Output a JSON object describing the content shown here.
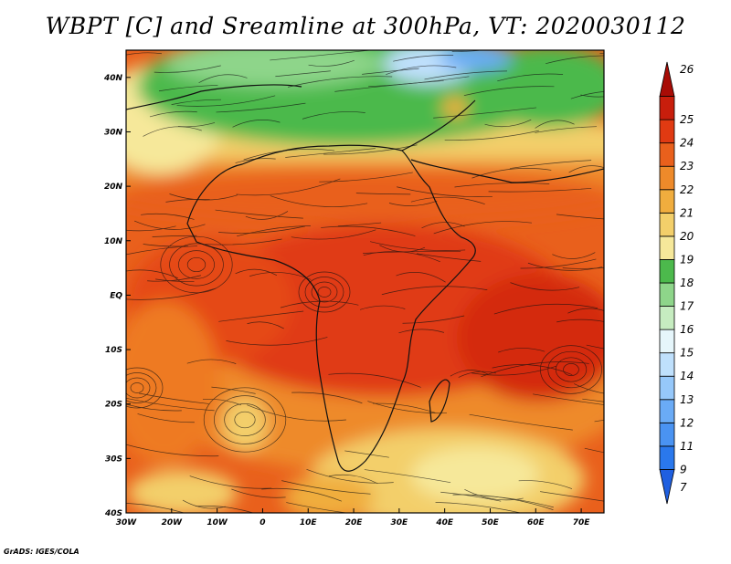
{
  "title": "WBPT [C] and Sreamline at 300hPa, VT: 2020030112",
  "credit": "GrADS: IGES/COLA",
  "map": {
    "lon_range": [
      -30,
      75
    ],
    "lat_range": [
      -40,
      45
    ],
    "lon_ticks": [
      {
        "value": -30,
        "label": "30W"
      },
      {
        "value": -20,
        "label": "20W"
      },
      {
        "value": -10,
        "label": "10W"
      },
      {
        "value": 0,
        "label": "0"
      },
      {
        "value": 10,
        "label": "10E"
      },
      {
        "value": 20,
        "label": "20E"
      },
      {
        "value": 30,
        "label": "30E"
      },
      {
        "value": 40,
        "label": "40E"
      },
      {
        "value": 50,
        "label": "50E"
      },
      {
        "value": 60,
        "label": "60E"
      },
      {
        "value": 70,
        "label": "70E"
      }
    ],
    "lat_ticks": [
      {
        "value": 40,
        "label": "40N"
      },
      {
        "value": 30,
        "label": "30N"
      },
      {
        "value": 20,
        "label": "20N"
      },
      {
        "value": 10,
        "label": "10N"
      },
      {
        "value": 0,
        "label": "EQ"
      },
      {
        "value": -10,
        "label": "10S"
      },
      {
        "value": -20,
        "label": "20S"
      },
      {
        "value": -30,
        "label": "30S"
      },
      {
        "value": -40,
        "label": "40S"
      }
    ]
  },
  "colorbar": {
    "labels": [
      "7",
      "9",
      "11",
      "12",
      "13",
      "14",
      "15",
      "16",
      "17",
      "18",
      "19",
      "20",
      "21",
      "22",
      "23",
      "24",
      "25",
      "26"
    ],
    "colors": [
      "#1f5fe0",
      "#2a78ec",
      "#4a93f2",
      "#6aabf6",
      "#96c8fa",
      "#bfe0fc",
      "#e6f6fb",
      "#c6ecc0",
      "#8ed58a",
      "#4cb94c",
      "#f6e89a",
      "#f3cf6a",
      "#f0ad3e",
      "#ee8a2a",
      "#e9601c",
      "#e03a12",
      "#c81e0c",
      "#a80c06"
    ]
  }
}
